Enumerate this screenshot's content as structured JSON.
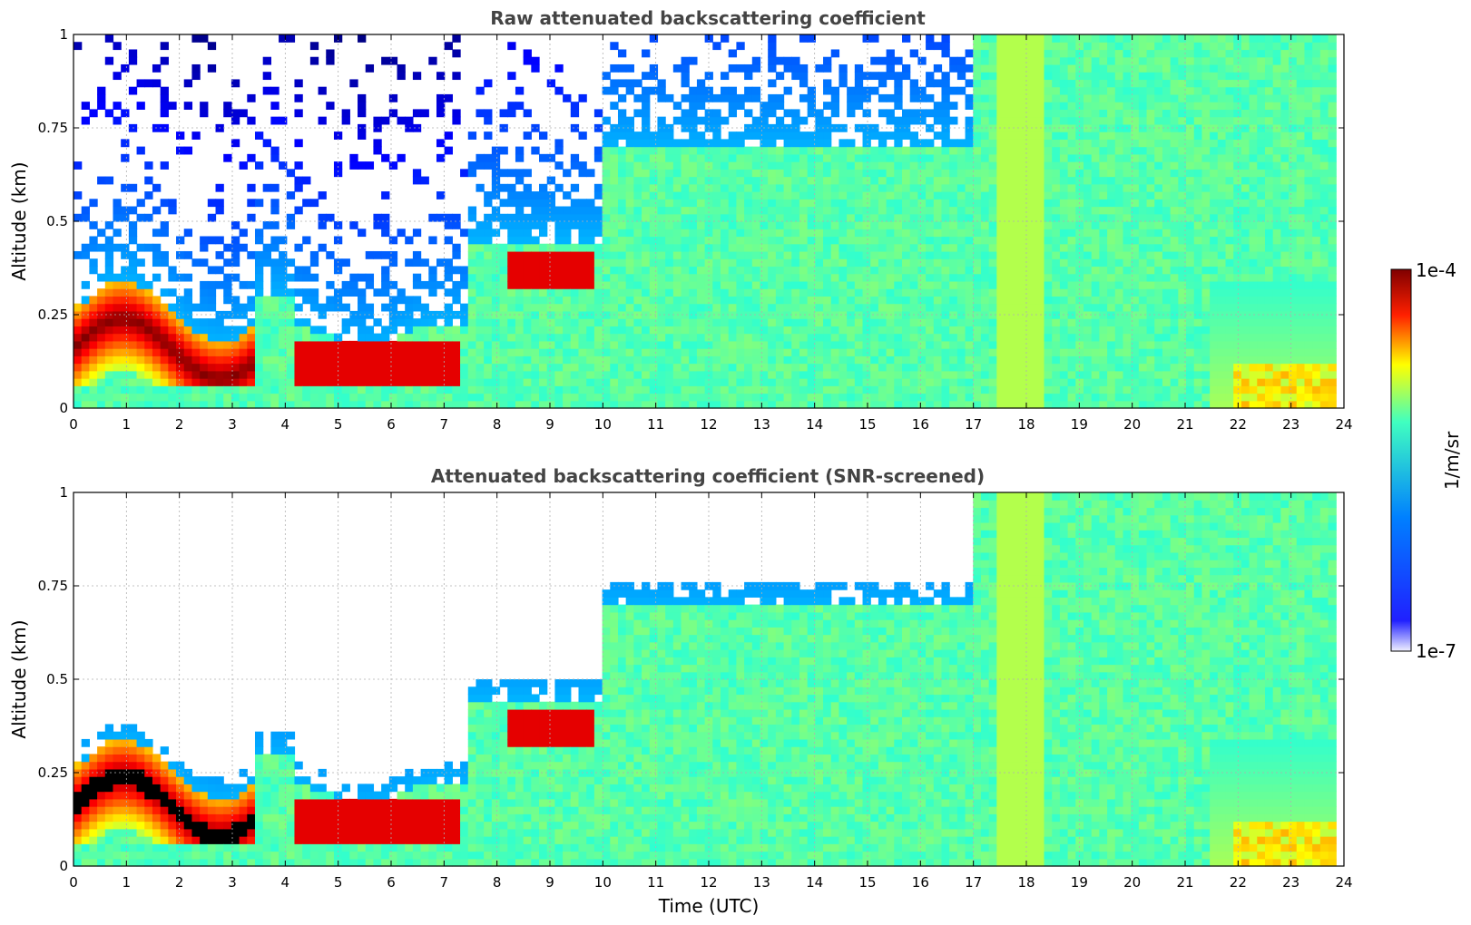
{
  "chart_data": [
    {
      "type": "heatmap",
      "title": "Raw attenuated backscattering coefficient",
      "xlabel": "",
      "ylabel": "Altitude (km)",
      "xlim": [
        0,
        24
      ],
      "ylim": [
        0,
        1
      ],
      "xticks": [
        "0",
        "1",
        "2",
        "3",
        "4",
        "5",
        "6",
        "7",
        "8",
        "9",
        "10",
        "11",
        "12",
        "13",
        "14",
        "15",
        "16",
        "17",
        "18",
        "19",
        "20",
        "21",
        "22",
        "23",
        "24"
      ],
      "yticks": [
        "0",
        "0.25",
        "0.5",
        "0.75",
        "1"
      ],
      "data_end_time": 23.85,
      "grid": true,
      "screened": false,
      "colorscale": "jet"
    },
    {
      "type": "heatmap",
      "title": "Attenuated backscattering coefficient (SNR-screened)",
      "xlabel": "Time (UTC)",
      "ylabel": "Altitude (km)",
      "xlim": [
        0,
        24
      ],
      "ylim": [
        0,
        1
      ],
      "xticks": [
        "0",
        "1",
        "2",
        "3",
        "4",
        "5",
        "6",
        "7",
        "8",
        "9",
        "10",
        "11",
        "12",
        "13",
        "14",
        "15",
        "16",
        "17",
        "18",
        "19",
        "20",
        "21",
        "22",
        "23",
        "24"
      ],
      "yticks": [
        "0",
        "0.25",
        "0.5",
        "0.75",
        "1"
      ],
      "data_end_time": 23.85,
      "grid": true,
      "screened": true,
      "colorscale": "jet"
    }
  ],
  "colorbar": {
    "label": "1/m/sr",
    "max_label": "1e-4",
    "min_label": "1e-7",
    "colors": [
      "#f0f0ff",
      "#0000ff",
      "#00ffff",
      "#ffff00",
      "#ff0000",
      "#800000"
    ]
  }
}
